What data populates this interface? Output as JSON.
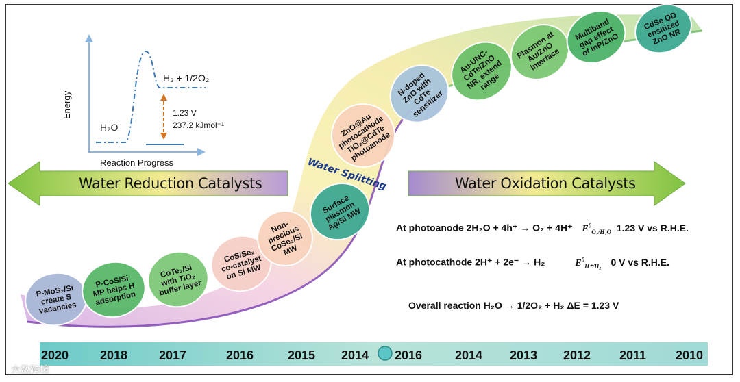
{
  "energy_plot": {
    "y_axis": "Energy",
    "x_axis": "Reaction Progress",
    "reactant": "H₂O",
    "product": "H₂ + 1/2O₂",
    "potential": "1.23 V",
    "energy": "237.2 kJmol⁻¹"
  },
  "left_arrow": "Water Reduction Catalysts",
  "right_arrow": "Water Oxidation Catalysts",
  "center_label": "Water Splitting",
  "reduction_catalysts": [
    {
      "lines": [
        "P-MoS₂/Si",
        "create S",
        "vacancies"
      ],
      "color": "#a9b8d8"
    },
    {
      "lines": [
        "P-CoS/Si",
        "MP helps H",
        "adsorption"
      ],
      "color": "#59b86a"
    },
    {
      "lines": [
        "CoTe₂/Si",
        "with TiO₂",
        "buffer layer"
      ],
      "color": "#7ec97a"
    },
    {
      "lines": [
        "CoS/Seₓ",
        "co-catalyst",
        "on Si MW"
      ],
      "color": "#f6cfc8"
    },
    {
      "lines": [
        "Non-",
        "precious",
        "CoSe₂/Si",
        "MW"
      ],
      "color": "#f9d3bc"
    },
    {
      "lines": [
        "Surface",
        "plasmon",
        "Ag/Si MW"
      ],
      "color": "#3fa992"
    }
  ],
  "oxidation_catalysts": [
    {
      "lines": [
        "ZnO@Au",
        "photocathode",
        "TiO₂@CdTe",
        "photoanode"
      ],
      "color": "#f9d3bc"
    },
    {
      "lines": [
        "N-doped",
        "ZnO with",
        "CdTe",
        "sensitizer"
      ],
      "color": "#a9c4dc"
    },
    {
      "lines": [
        "Au-UNC-",
        "CdTe/ZnO",
        "NR, extend",
        "range"
      ],
      "color": "#6cbf6a"
    },
    {
      "lines": [
        "Plasmon at",
        "Au/ZnO",
        "interface"
      ],
      "color": "#7cc873"
    },
    {
      "lines": [
        "Multiband",
        "gap effect",
        "of InP/ZnO"
      ],
      "color": "#4db36a"
    },
    {
      "lines": [
        "CdSe QD",
        "ensitized",
        "ZnO NR"
      ],
      "color": "#3fa992"
    }
  ],
  "equations": {
    "anode_text": "At photoanode 2H₂O + 4h⁺ → O₂ + 4H⁺",
    "anode_potential_symbol": "E⁰ O₂/H₂O",
    "anode_value": "1.23 V vs R.H.E.",
    "cathode_text": "At photocathode 2H⁺ + 2e⁻ → H₂",
    "cathode_potential_symbol": "E⁰ H⁺/H₂",
    "cathode_value": "0 V vs R.H.E.",
    "overall": "Overall reaction H₂O → 1/2O₂ + H₂  ΔE = 1.23 V"
  },
  "timeline": [
    "2020",
    "2018",
    "2017",
    "2016",
    "2015",
    "2014",
    "2016",
    "2014",
    "2013",
    "2012",
    "2011",
    "2010"
  ],
  "watermark": "大数跨境",
  "colors": {
    "arrow_green": "#7fc241",
    "arrow_purple": "#b99ad6",
    "timeline_teal": "#5bc4c4"
  }
}
